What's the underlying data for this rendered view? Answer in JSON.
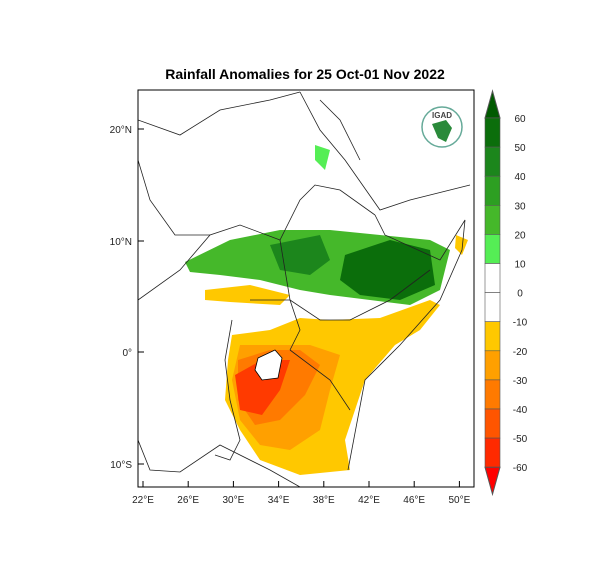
{
  "title": "Rainfall Anomalies for 25 Oct-01 Nov 2022",
  "logo_text": "IGAD",
  "map": {
    "lon_ticks": [
      "22°E",
      "26°E",
      "30°E",
      "34°E",
      "38°E",
      "42°E",
      "46°E",
      "50°E"
    ],
    "lat_ticks": [
      "20°N",
      "10°N",
      "0°",
      "10°S"
    ]
  },
  "colorbar": {
    "labels": [
      "60",
      "50",
      "40",
      "30",
      "20",
      "10",
      "0",
      "-10",
      "-20",
      "-30",
      "-40",
      "-50",
      "-60"
    ],
    "colors": [
      "#005a00",
      "#0b6e0b",
      "#1c861c",
      "#2d9f22",
      "#45b82a",
      "#55ee55",
      "#ffffff",
      "#ffffff",
      "#ffc800",
      "#ffa000",
      "#ff7a00",
      "#ff5500",
      "#ff2a00",
      "#ff0000"
    ]
  }
}
